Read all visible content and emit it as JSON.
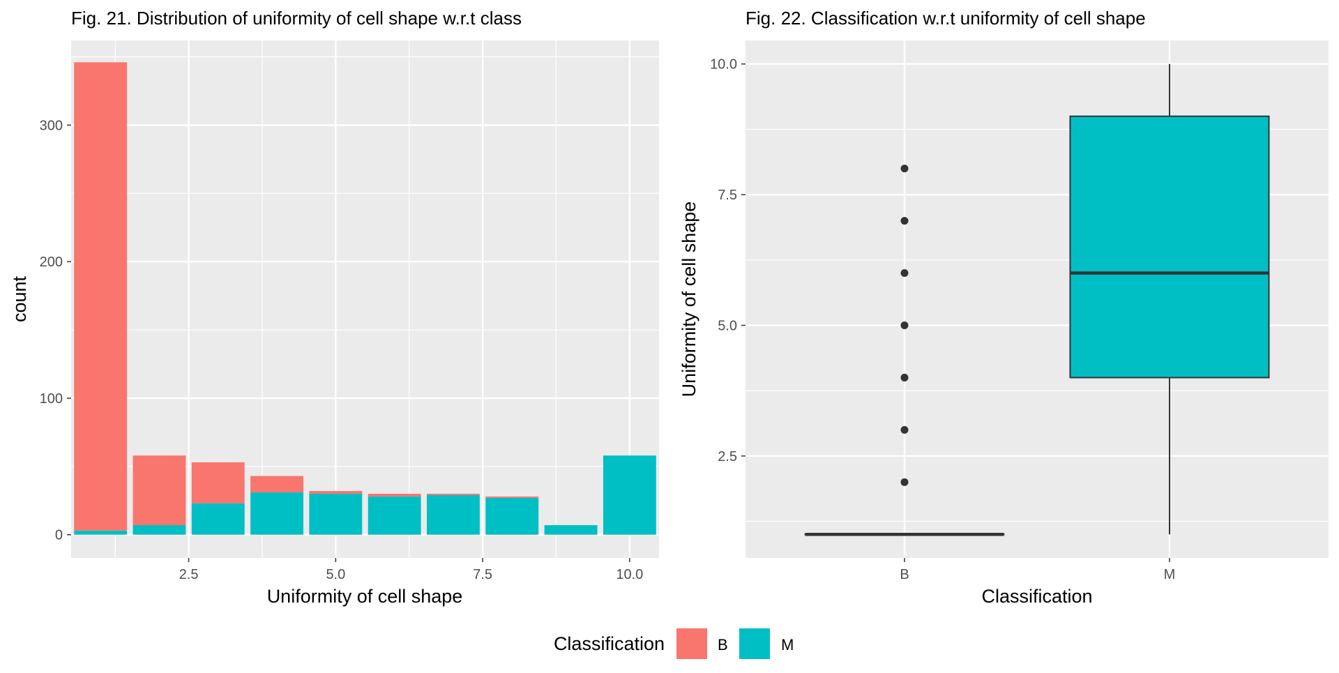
{
  "colors": {
    "B": "#F8766D",
    "M": "#00BFC4",
    "panel_bg": "#EBEBEB",
    "grid": "#FFFFFF",
    "axis_text": "#4D4D4D",
    "box_line": "#333333"
  },
  "legend": {
    "title": "Classification",
    "placement": "bottom",
    "items": [
      {
        "label": "B",
        "color": "#F8766D"
      },
      {
        "label": "M",
        "color": "#00BFC4"
      }
    ]
  },
  "chart_data": [
    {
      "type": "bar",
      "stacked": true,
      "title": "Fig. 21. Distribution of uniformity of cell shape w.r.t class",
      "xlabel": "Uniformity of cell shape",
      "ylabel": "count",
      "x": [
        1,
        2,
        3,
        4,
        5,
        6,
        7,
        8,
        9,
        10
      ],
      "series": [
        {
          "name": "B",
          "values": [
            343,
            51,
            30,
            12,
            2,
            2,
            1,
            1,
            0,
            0
          ]
        },
        {
          "name": "M",
          "values": [
            3,
            7,
            23,
            31,
            30,
            28,
            29,
            27,
            7,
            58
          ]
        }
      ],
      "xlim": [
        0.5,
        10.5
      ],
      "ylim": [
        -17,
        362
      ],
      "xticks": [
        2.5,
        5.0,
        7.5,
        10.0
      ],
      "xtick_labels": [
        "2.5",
        "5.0",
        "7.5",
        "10.0"
      ],
      "yticks": [
        0,
        100,
        200,
        300
      ],
      "ytick_labels": [
        "0",
        "100",
        "200",
        "300"
      ],
      "grid": true
    },
    {
      "type": "boxplot",
      "title": "Fig. 22. Classification w.r.t uniformity of cell shape",
      "xlabel": "Classification",
      "ylabel": "Uniformity of cell shape",
      "categories": [
        "B",
        "M"
      ],
      "boxes": [
        {
          "name": "B",
          "min": 1,
          "q1": 1,
          "median": 1,
          "q3": 1,
          "max": 1,
          "outliers": [
            2,
            3,
            4,
            5,
            6,
            7,
            8
          ]
        },
        {
          "name": "M",
          "min": 1,
          "q1": 4,
          "median": 6,
          "q3": 9,
          "max": 10,
          "outliers": []
        }
      ],
      "ylim": [
        0.55,
        10.45
      ],
      "yticks": [
        2.5,
        5.0,
        7.5,
        10.0
      ],
      "ytick_labels": [
        "2.5",
        "5.0",
        "7.5",
        "10.0"
      ],
      "grid": true
    }
  ]
}
